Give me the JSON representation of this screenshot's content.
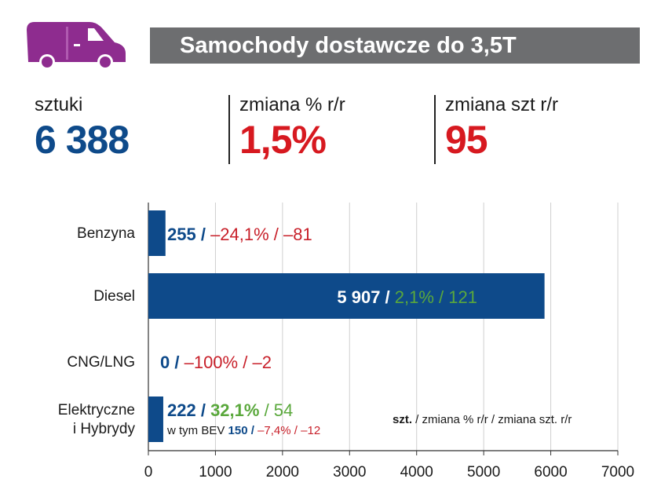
{
  "header": {
    "title": "Samochody dostawcze do 3,5T",
    "icon": "van-icon",
    "icon_color": "#8e2c8f"
  },
  "kpis": [
    {
      "label": "sztuki",
      "value": "6 388"
    },
    {
      "label": "zmiana % r/r",
      "value": "1,5%"
    },
    {
      "label": "zmiana szt r/r",
      "value": "95"
    }
  ],
  "colors": {
    "bar": "#0e4a8a",
    "negative": "#c8202a",
    "positive": "#5aa83c",
    "title_bg": "#6d6e70"
  },
  "chart_data": {
    "type": "bar",
    "orientation": "horizontal",
    "categories": [
      "Benzyna",
      "Diesel",
      "CNG/LNG",
      "Elektryczne i Hybrydy"
    ],
    "category_lines": [
      [
        "Benzyna"
      ],
      [
        "Diesel"
      ],
      [
        "CNG/LNG"
      ],
      [
        "Elektryczne",
        "i Hybrydy"
      ]
    ],
    "values": [
      255,
      5907,
      0,
      222
    ],
    "xlim": [
      0,
      7000
    ],
    "xticks": [
      "0",
      "1000",
      "2000",
      "3000",
      "4000",
      "5000",
      "6000",
      "7000"
    ],
    "grid": true,
    "bar_labels": [
      {
        "value": "255",
        "pct": "–24,1%",
        "diff": "–81"
      },
      {
        "value": "5 907",
        "pct": "2,1%",
        "diff": "121"
      },
      {
        "value": "0",
        "pct": "–100%",
        "diff": "–2"
      },
      {
        "value": "222",
        "pct": "32,1%",
        "diff": "54"
      }
    ],
    "annotation": {
      "prefix": "w tym BEV",
      "value": "150",
      "pct": "–7,4%",
      "diff": "–12"
    },
    "legend": {
      "bold": "szt.",
      "rest": " / zmiana % r/r / zmiana szt. r/r"
    }
  }
}
